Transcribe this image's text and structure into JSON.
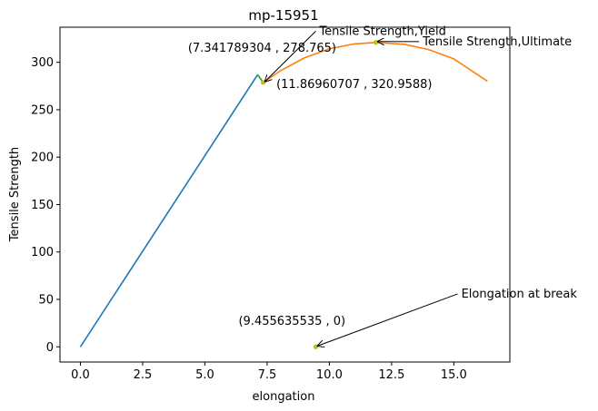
{
  "chart_data": {
    "type": "line",
    "title": "mp-15951",
    "xlabel": "elongation",
    "ylabel": "Tensile Strength",
    "xlim": [
      -0.82,
      17.25
    ],
    "ylim": [
      -16,
      337
    ],
    "xticks": [
      0.0,
      2.5,
      5.0,
      7.5,
      10.0,
      12.5,
      15.0
    ],
    "xtick_labels": [
      "0.0",
      "2.5",
      "5.0",
      "7.5",
      "10.0",
      "12.5",
      "15.0"
    ],
    "yticks": [
      0,
      50,
      100,
      150,
      200,
      250,
      300
    ],
    "ytick_labels": [
      "0",
      "50",
      "100",
      "150",
      "200",
      "250",
      "300"
    ],
    "grid": false,
    "series": [
      {
        "color": "#1f77b4",
        "x": [
          0.0,
          7.12
        ],
        "y": [
          0,
          287
        ]
      },
      {
        "color": "#2ca02c",
        "x": [
          7.12,
          7.34
        ],
        "y": [
          287,
          278.765
        ]
      },
      {
        "color": "#ff7f0e",
        "x": [
          7.34,
          8.0,
          9.0,
          10.0,
          11.0,
          11.87,
          13.0,
          14.0,
          15.0,
          16.35
        ],
        "y": [
          278.765,
          290.5,
          304.7,
          314.3,
          319.4,
          320.96,
          319.0,
          313.3,
          303.6,
          280.0
        ]
      }
    ],
    "points": [
      {
        "x": 7.341789304,
        "y": 278.765,
        "color": "#bcbd22"
      },
      {
        "x": 11.86960707,
        "y": 320.9588,
        "color": "#bcbd22"
      },
      {
        "x": 9.455635535,
        "y": 0,
        "color": "#bcbd22"
      }
    ],
    "annotations": [
      {
        "label": "Tensile Strength,Yield",
        "value_label": "(7.341789304 , 278.765)",
        "target": [
          7.341789304,
          278.765
        ],
        "text_at": [
          9.6,
          329
        ],
        "value_at": [
          7.3,
          311
        ],
        "anchor": "start"
      },
      {
        "label": "Tensile Strength,Ultimate",
        "value_label": "(11.86960707 , 320.9588)",
        "target": [
          11.86960707,
          320.9588
        ],
        "text_at": [
          13.75,
          318
        ],
        "value_at": [
          11.0,
          273
        ],
        "anchor": "start"
      },
      {
        "label": "Elongation at break",
        "value_label": "(9.455635535 , 0)",
        "target": [
          9.455635535,
          0
        ],
        "text_at": [
          15.3,
          52
        ],
        "value_at": [
          8.5,
          23
        ],
        "anchor": "start"
      }
    ]
  }
}
